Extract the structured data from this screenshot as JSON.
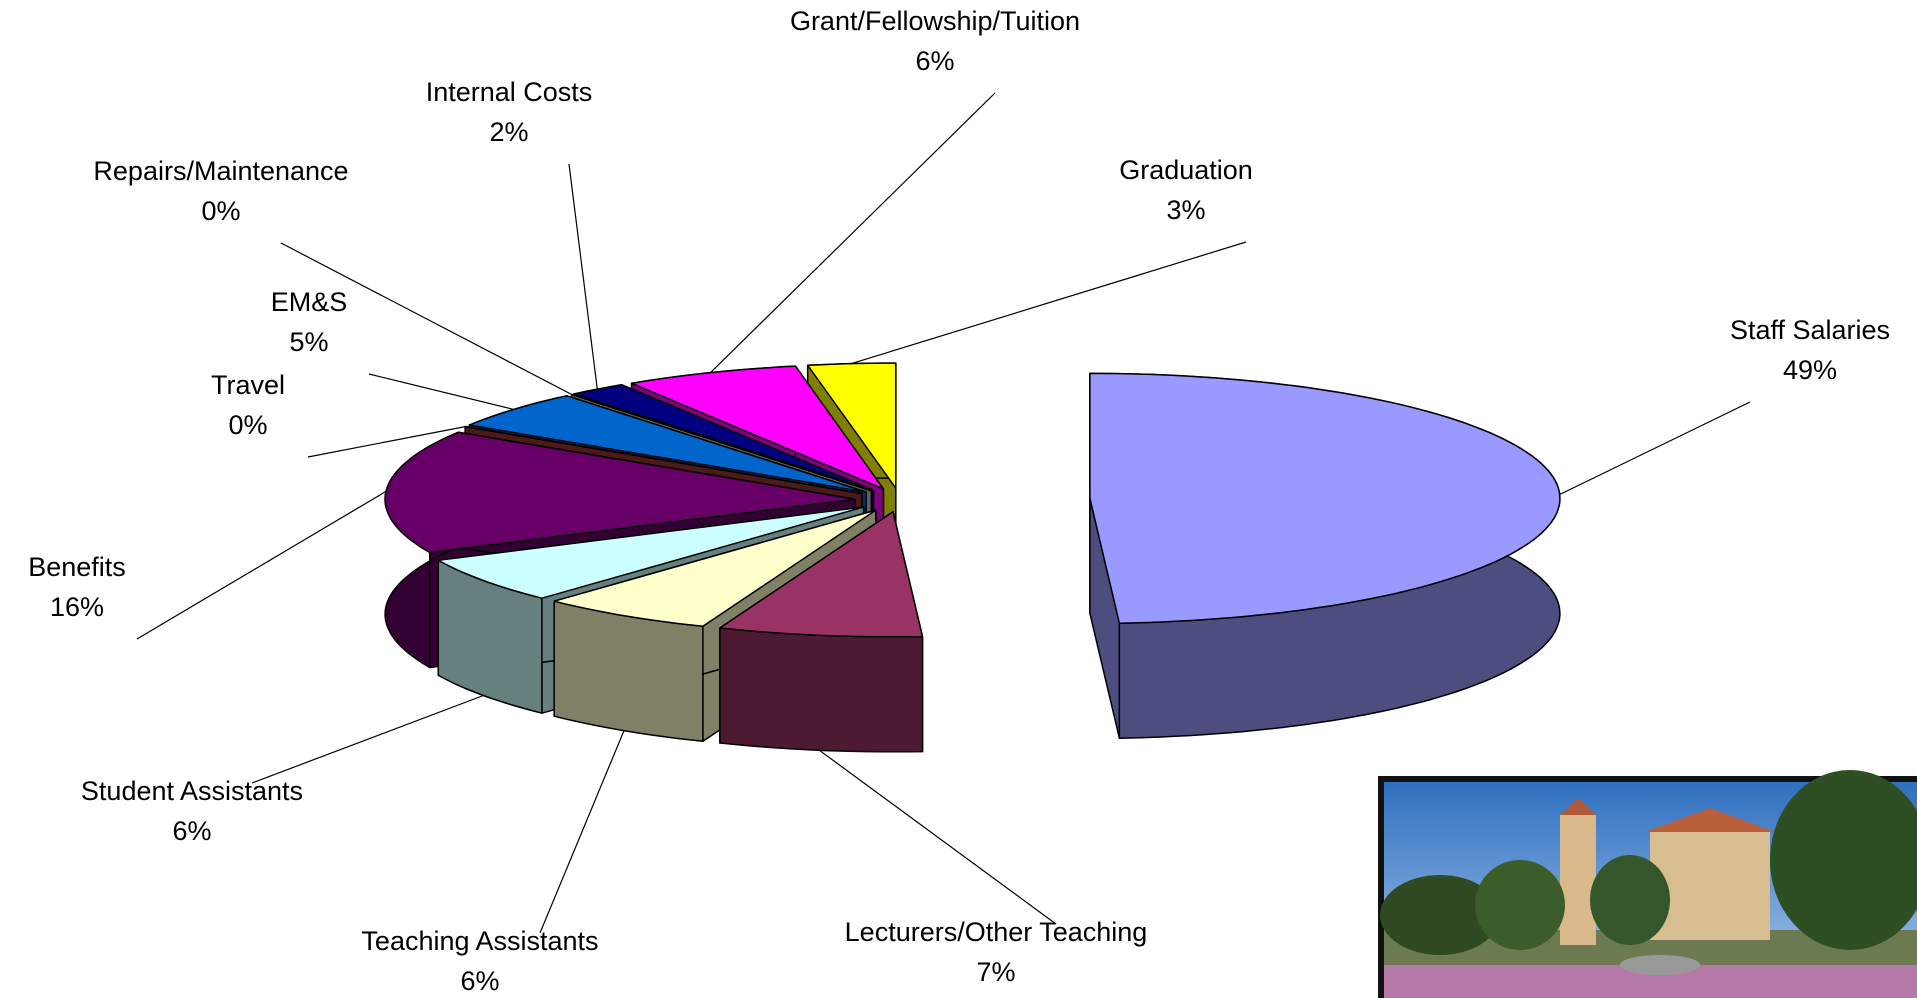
{
  "chart_data": {
    "type": "pie",
    "categories": [
      "Staff Salaries",
      "Lecturers/Other Teaching",
      "Teaching Assistants",
      "Student Assistants",
      "Benefits",
      "Travel",
      "EM&S",
      "Repairs/Maintenance",
      "Internal Costs",
      "Grant/Fellowship/Tuition",
      "Graduation"
    ],
    "values": [
      49,
      7,
      6,
      6,
      16,
      0,
      5,
      0,
      2,
      6,
      3
    ],
    "value_labels": [
      "49%",
      "7%",
      "6%",
      "6%",
      "16%",
      "0%",
      "5%",
      "0%",
      "2%",
      "6%",
      "3%"
    ],
    "colors": [
      "#9999ff",
      "#993366",
      "#ffffcc",
      "#ccffff",
      "#660066",
      "#993333",
      "#0066cc",
      "#c0c0c0",
      "#000080",
      "#ff00ff",
      "#ffff00"
    ]
  }
}
